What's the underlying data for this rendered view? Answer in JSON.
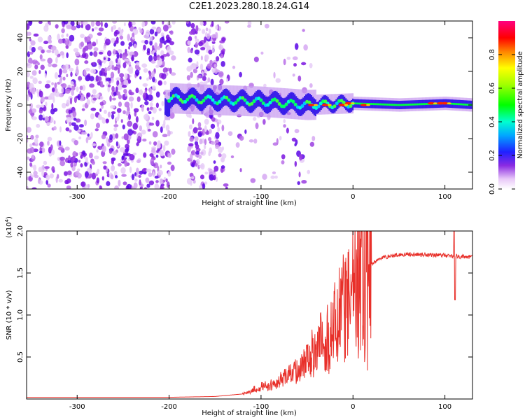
{
  "title": "C2E1.2023.280.18.24.G14",
  "chart_data": [
    {
      "type": "heatmap",
      "xlabel": "Height of straight line (km)",
      "ylabel": "Frequency (Hz)",
      "xlim": [
        -355,
        130
      ],
      "ylim": [
        -50,
        50
      ],
      "x_ticks": [
        -300,
        -200,
        -100,
        0,
        100
      ],
      "y_ticks": [
        -40,
        -20,
        0,
        20,
        40
      ],
      "x_tick_labels": [
        "-300",
        "-200",
        "-100",
        "0",
        "100"
      ],
      "y_tick_labels": [
        "-40",
        "-20",
        "0",
        "20",
        "40"
      ],
      "colorbar": {
        "label": "Normalized spectral amplitude",
        "range": [
          0,
          1
        ],
        "ticks": [
          0,
          0.2,
          0.4,
          0.6,
          0.8
        ],
        "tick_labels": [
          "0.0",
          "0.2",
          "0.4",
          "0.6",
          "0.8"
        ]
      },
      "ridge": [
        {
          "x": -200,
          "y": 4
        },
        {
          "x": -150,
          "y": 3
        },
        {
          "x": -100,
          "y": 2
        },
        {
          "x": -50,
          "y": 0
        },
        {
          "x": 0,
          "y": 1
        },
        {
          "x": 50,
          "y": 0
        },
        {
          "x": 100,
          "y": 1
        },
        {
          "x": 130,
          "y": 0
        }
      ]
    },
    {
      "type": "line",
      "xlabel": "Height of straight line (km)",
      "ylabel": "SNR (10 * v/v)",
      "exponent_label": "(x10",
      "exponent_power": "4",
      "exponent_close": ")",
      "xlim": [
        -355,
        130
      ],
      "ylim": [
        0,
        2.0
      ],
      "x_ticks": [
        -300,
        -200,
        -100,
        0,
        100
      ],
      "y_ticks": [
        0.5,
        1.0,
        1.5,
        2.0
      ],
      "x_tick_labels": [
        "-300",
        "-200",
        "-100",
        "0",
        "100"
      ],
      "y_tick_labels": [
        "0.5",
        "1.0",
        "1.5",
        "2.0"
      ],
      "line_color": "#e8302a",
      "series": [
        {
          "x": [
            -355,
            -300,
            -250,
            -200,
            -150,
            -120,
            -100,
            -80,
            -60,
            -40,
            -20,
            -10,
            0,
            10,
            20,
            30,
            50,
            80,
            100,
            110,
            130
          ],
          "y": [
            0.02,
            0.02,
            0.02,
            0.02,
            0.03,
            0.06,
            0.12,
            0.2,
            0.35,
            0.55,
            0.85,
            1.05,
            1.25,
            1.45,
            1.6,
            1.68,
            1.72,
            1.72,
            1.71,
            1.7,
            1.69
          ]
        }
      ]
    }
  ]
}
